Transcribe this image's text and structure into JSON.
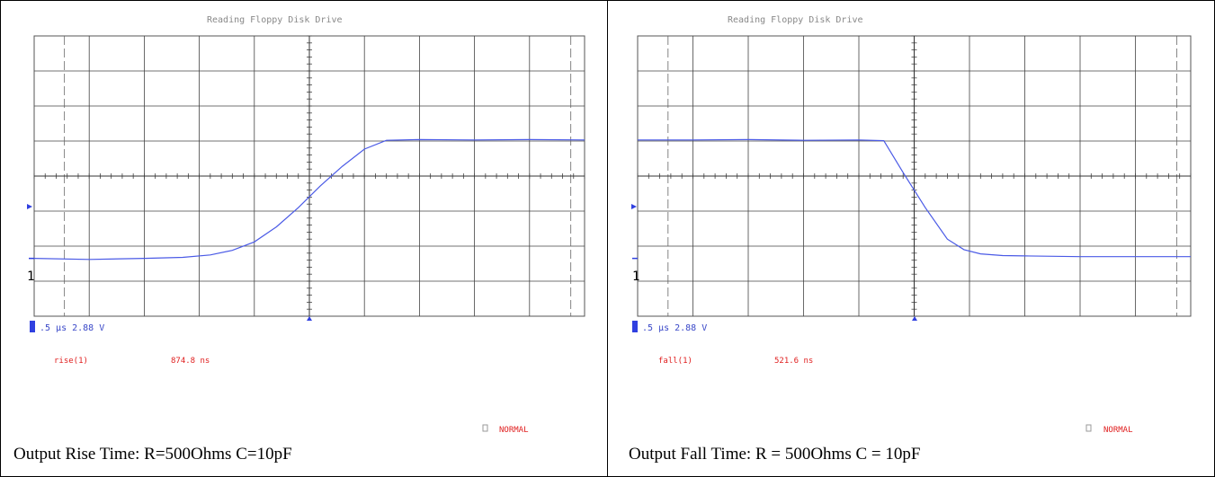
{
  "chart_data": [
    {
      "type": "line",
      "title": "Reading Floppy Disk Drive",
      "caption": "Output Rise Time: R=500Ohms C=10pF",
      "scale_readout": ".5 µs 2.88 V",
      "channel_marker": "1",
      "measurement": {
        "label": "rise(1)",
        "value": "874.8 ns"
      },
      "mode": "NORMAL",
      "x_divisions": 10,
      "y_divisions": 8,
      "xlim": [
        0,
        10
      ],
      "ylim": [
        0,
        8
      ],
      "grid": true,
      "series": [
        {
          "color": "#4a5ae6",
          "x": [
            0,
            1,
            2,
            2.7,
            3.2,
            3.6,
            4.0,
            4.4,
            4.8,
            5.2,
            5.6,
            6.0,
            6.4,
            7,
            8,
            9,
            10
          ],
          "y": [
            1.65,
            1.62,
            1.65,
            1.68,
            1.75,
            1.88,
            2.12,
            2.55,
            3.1,
            3.72,
            4.28,
            4.77,
            5.02,
            5.04,
            5.03,
            5.04,
            5.03
          ]
        }
      ]
    },
    {
      "type": "line",
      "title": "Reading Floppy Disk Drive",
      "caption": "Output Fall Time: R = 500Ohms C = 10pF",
      "scale_readout": ".5 µs 2.88 V",
      "channel_marker": "1",
      "measurement": {
        "label": "fall(1)",
        "value": "521.6 ns"
      },
      "mode": "NORMAL",
      "x_divisions": 10,
      "y_divisions": 8,
      "xlim": [
        0,
        10
      ],
      "ylim": [
        0,
        8
      ],
      "grid": true,
      "series": [
        {
          "color": "#4a5ae6",
          "x": [
            0,
            1,
            2,
            3,
            4,
            4.45,
            4.8,
            5.2,
            5.6,
            5.9,
            6.2,
            6.6,
            7,
            8,
            9,
            10
          ],
          "y": [
            5.03,
            5.03,
            5.04,
            5.02,
            5.03,
            5.01,
            4.1,
            3.1,
            2.2,
            1.9,
            1.78,
            1.73,
            1.72,
            1.7,
            1.7,
            1.7
          ]
        }
      ]
    }
  ]
}
